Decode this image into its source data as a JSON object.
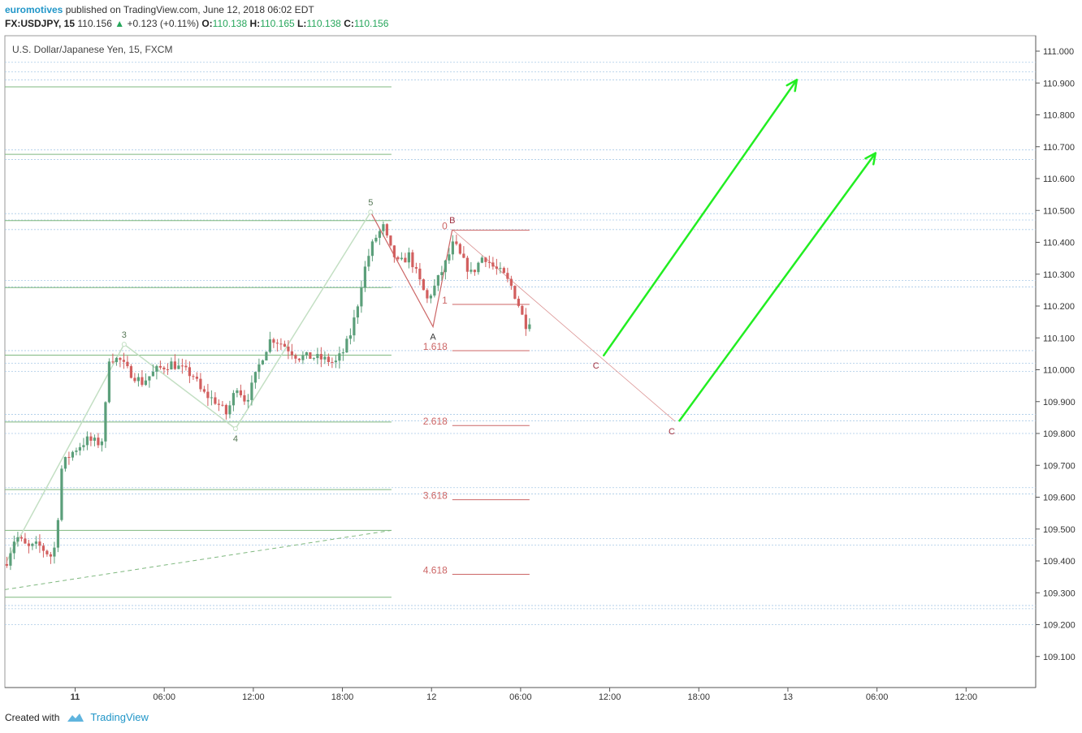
{
  "header": {
    "author": "euromotives",
    "published_text": "published on TradingView.com, June 12, 2018 06:02 EDT",
    "symbol_line": "FX:USDJPY, 15",
    "last": "110.156",
    "change_arrow": "▲",
    "change": "+0.123 (+0.11%)",
    "o_label": "O:",
    "o_value": "110.138",
    "h_label": "H:",
    "h_value": "110.165",
    "l_label": "L:",
    "l_value": "110.138",
    "c_label": "C:",
    "c_value": "110.156"
  },
  "footer": {
    "created_with": "Created with",
    "brand": "TradingView",
    "logo_icon": "tradingview-cloud-icon"
  },
  "colors": {
    "up": "#5b9f7a",
    "down": "#d25f5f",
    "green_line": "#7fb87f",
    "fib": "#cc6666",
    "zone": "#a9c9e6",
    "arrow": "#22ee22",
    "wave": "#c3dfc3"
  },
  "chart_data": {
    "type": "candlestick",
    "title": "U.S. Dollar/Japanese Yen, 15, FXCM",
    "ylim": [
      109.0,
      111.05
    ],
    "y_ticks": [
      111.0,
      110.9,
      110.8,
      110.7,
      110.6,
      110.5,
      110.4,
      110.3,
      110.2,
      110.1,
      110.0,
      109.9,
      109.8,
      109.7,
      109.6,
      109.5,
      109.4,
      109.3,
      109.2,
      109.1
    ],
    "y_tick_labels": [
      "111.000",
      "110.900",
      "110.800",
      "110.700",
      "110.600",
      "110.500",
      "110.400",
      "110.300",
      "110.200",
      "110.100",
      "110.000",
      "109.900",
      "109.800",
      "109.700",
      "109.600",
      "109.500",
      "109.400",
      "109.300",
      "109.200",
      "109.100"
    ],
    "x_tick_labels": [
      "11",
      "06:00",
      "12:00",
      "18:00",
      "12",
      "06:00",
      "12:00",
      "18:00",
      "13",
      "06:00",
      "12:00"
    ],
    "x_tick_hours": [
      0,
      6,
      12,
      18,
      24,
      30,
      36,
      42,
      48,
      54,
      60
    ],
    "x_start_hour": -4.6,
    "x_end_hour": 64.8,
    "close_anchors": [
      [
        -4.6,
        109.4
      ],
      [
        -4.0,
        109.48
      ],
      [
        -3.2,
        109.44
      ],
      [
        -2.5,
        109.45
      ],
      [
        -1.5,
        109.41
      ],
      [
        -1.2,
        109.5
      ],
      [
        -1.0,
        109.68
      ],
      [
        -0.6,
        109.72
      ],
      [
        0.0,
        109.75
      ],
      [
        0.8,
        109.78
      ],
      [
        1.6,
        109.77
      ],
      [
        2.0,
        109.79
      ],
      [
        2.1,
        110.0
      ],
      [
        2.3,
        110.04
      ],
      [
        3.0,
        110.03
      ],
      [
        3.5,
        110.0
      ],
      [
        4.5,
        109.96
      ],
      [
        5.5,
        110.0
      ],
      [
        6.5,
        110.02
      ],
      [
        8.0,
        109.98
      ],
      [
        8.5,
        109.93
      ],
      [
        9.5,
        109.9
      ],
      [
        10.2,
        109.86
      ],
      [
        10.9,
        109.95
      ],
      [
        11.5,
        109.9
      ],
      [
        12.0,
        109.96
      ],
      [
        12.5,
        110.03
      ],
      [
        13.2,
        110.1
      ],
      [
        14.0,
        110.08
      ],
      [
        15.0,
        110.04
      ],
      [
        16.0,
        110.04
      ],
      [
        17.0,
        110.03
      ],
      [
        17.5,
        110.02
      ],
      [
        18.1,
        110.06
      ],
      [
        18.6,
        110.12
      ],
      [
        19.0,
        110.2
      ],
      [
        19.4,
        110.3
      ],
      [
        19.9,
        110.38
      ],
      [
        20.3,
        110.42
      ],
      [
        20.8,
        110.45
      ],
      [
        21.1,
        110.39
      ],
      [
        21.8,
        110.33
      ],
      [
        22.5,
        110.36
      ],
      [
        23.0,
        110.3
      ],
      [
        23.7,
        110.22
      ],
      [
        24.2,
        110.26
      ],
      [
        25.0,
        110.34
      ],
      [
        25.5,
        110.4
      ],
      [
        26.0,
        110.35
      ],
      [
        26.7,
        110.3
      ],
      [
        27.5,
        110.36
      ],
      [
        28.2,
        110.32
      ],
      [
        28.8,
        110.3
      ],
      [
        29.4,
        110.26
      ],
      [
        29.9,
        110.2
      ],
      [
        30.3,
        110.14
      ],
      [
        30.6,
        110.156
      ]
    ],
    "candle_count": 144,
    "fib_levels": [
      {
        "label": "0",
        "value": 110.438
      },
      {
        "label": "1",
        "value": 110.205
      },
      {
        "label": "1.618",
        "value": 110.06
      },
      {
        "label": "2.618",
        "value": 109.825
      },
      {
        "label": "3.618",
        "value": 109.592
      },
      {
        "label": "4.618",
        "value": 109.358
      }
    ],
    "green_levels": [
      110.888,
      110.676,
      110.468,
      110.258,
      110.046,
      109.836,
      109.624,
      109.496,
      109.286
    ],
    "zone_levels": [
      110.965,
      110.935,
      110.91,
      110.69,
      110.66,
      110.49,
      110.47,
      110.44,
      110.28,
      110.26,
      110.06,
      110.02,
      109.995,
      109.86,
      109.84,
      109.8,
      109.63,
      109.61,
      109.47,
      109.45,
      109.26,
      109.25,
      109.2
    ],
    "wave_labels": [
      {
        "label": "3",
        "hour": 3.3,
        "value": 110.08
      },
      {
        "label": "4",
        "hour": 10.8,
        "value": 109.815
      },
      {
        "label": "5",
        "hour": 19.9,
        "value": 110.495
      },
      {
        "label": "A",
        "hour": 24.1,
        "value": 110.135
      },
      {
        "label": "B",
        "hour": 25.4,
        "value": 110.44
      },
      {
        "label": "C",
        "hour": 35.3,
        "value": 110.045
      },
      {
        "label": "C",
        "hour": 40.4,
        "value": 109.838
      }
    ],
    "projection_arrows": [
      {
        "from_hour": 35.6,
        "from_value": 110.045,
        "to_hour": 48.6,
        "to_value": 110.91
      },
      {
        "from_hour": 40.7,
        "from_value": 109.84,
        "to_hour": 53.9,
        "to_value": 110.68
      }
    ]
  }
}
